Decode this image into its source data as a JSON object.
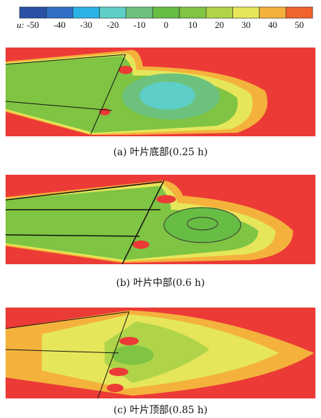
{
  "colorbar": {
    "label": "u:",
    "ticks": [
      -50,
      -40,
      -30,
      -20,
      -10,
      0,
      10,
      20,
      30,
      40,
      50
    ],
    "colors": [
      "#2a50a6",
      "#2f6fc6",
      "#2cb3e6",
      "#5ecfc6",
      "#6cc27c",
      "#67bd44",
      "#7fc443",
      "#afd44a",
      "#e6e65a",
      "#f4b23c",
      "#f0622e"
    ]
  },
  "panels": [
    {
      "caption": "(a) 叶片底部(0.25 h)"
    },
    {
      "caption": "(b) 叶片中部(0.6 h)"
    },
    {
      "caption": "(c) 叶片顶部(0.85 h)"
    }
  ]
}
